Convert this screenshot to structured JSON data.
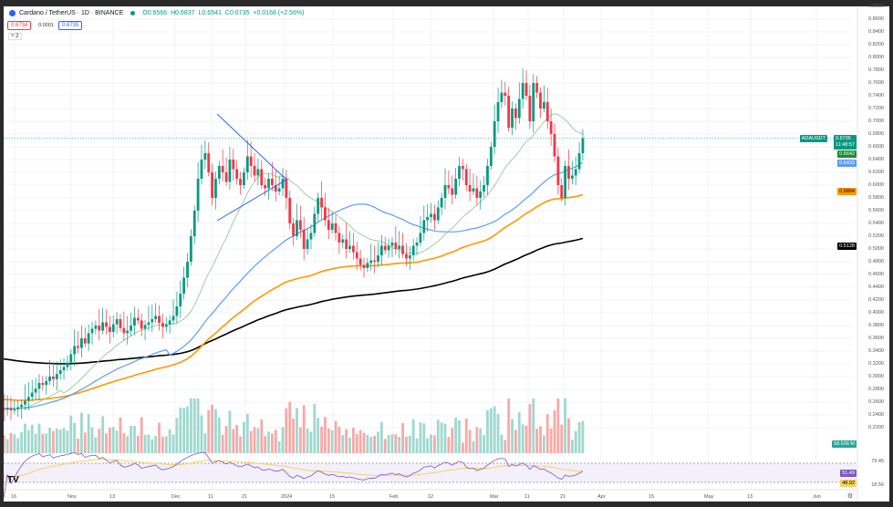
{
  "header": {
    "title": "Cardano / TetherUS · 1D · BINANCE",
    "open": "O0.6566",
    "high": "H0.6837",
    "low": "L0.6541",
    "close": "C0.6735",
    "change": "+0.0168 (+2.56%)",
    "bid": "0.6734",
    "spread": "0.0001",
    "ask": "0.6735",
    "indicators_toggle": "2"
  },
  "price_axis": [
    "0.8800",
    "0.8600",
    "0.8400",
    "0.8200",
    "0.8000",
    "0.7800",
    "0.7600",
    "0.7400",
    "0.7200",
    "0.7000",
    "0.6800",
    "0.6600",
    "0.6400",
    "0.6200",
    "0.6000",
    "0.5800",
    "0.5600",
    "0.5400",
    "0.5200",
    "0.5000",
    "0.4800",
    "0.4600",
    "0.4400",
    "0.4200",
    "0.4000",
    "0.3800",
    "0.3600",
    "0.3400",
    "0.3200",
    "0.3000",
    "0.2800",
    "0.2600",
    "0.2400",
    "0.2200"
  ],
  "tags": {
    "symbol": "ADAUSDT",
    "price": "0.6735",
    "countdown": "11:48:57",
    "ma20": "0.6642",
    "ma50": "0.6433",
    "ma100": "0.5894",
    "ma200": "0.5128",
    "volume": "58.636 M",
    "rsi_top": "79.45",
    "rsi": "51.49",
    "rsi_ma": "48.92",
    "rsi_bottom": "18.56"
  },
  "date_axis": [
    "16",
    "Nov",
    "13",
    "Dec",
    "11",
    "21",
    "2024",
    "15",
    "Feb",
    "12",
    "Mar",
    "11",
    "21",
    "Apr",
    "15",
    "May",
    "13",
    "Jun"
  ],
  "colors": {
    "up": "#089981",
    "down": "#f23645",
    "ma20": "#8bc48a",
    "ma50": "#5b9cf6",
    "ma100": "#ff9800",
    "ma200": "#000000",
    "rsi": "#7e57c2",
    "rsi_ma": "#f7d35b"
  },
  "chart_data": {
    "type": "candlestick",
    "start_date": "2023-10-12",
    "closes": [
      0.252,
      0.25,
      0.248,
      0.251,
      0.247,
      0.249,
      0.252,
      0.256,
      0.262,
      0.268,
      0.275,
      0.281,
      0.29,
      0.287,
      0.293,
      0.3,
      0.296,
      0.304,
      0.31,
      0.315,
      0.322,
      0.335,
      0.348,
      0.345,
      0.36,
      0.352,
      0.368,
      0.375,
      0.38,
      0.372,
      0.385,
      0.378,
      0.37,
      0.382,
      0.39,
      0.376,
      0.368,
      0.372,
      0.38,
      0.392,
      0.388,
      0.375,
      0.381,
      0.385,
      0.39,
      0.395,
      0.384,
      0.378,
      0.382,
      0.388,
      0.395,
      0.41,
      0.43,
      0.455,
      0.48,
      0.52,
      0.56,
      0.61,
      0.64,
      0.65,
      0.62,
      0.58,
      0.61,
      0.63,
      0.62,
      0.605,
      0.64,
      0.625,
      0.61,
      0.6,
      0.62,
      0.645,
      0.63,
      0.615,
      0.625,
      0.6,
      0.595,
      0.61,
      0.6,
      0.59,
      0.595,
      0.61,
      0.58,
      0.54,
      0.52,
      0.545,
      0.53,
      0.5,
      0.515,
      0.525,
      0.555,
      0.58,
      0.565,
      0.545,
      0.53,
      0.54,
      0.525,
      0.51,
      0.515,
      0.5,
      0.505,
      0.495,
      0.485,
      0.475,
      0.47,
      0.478,
      0.482,
      0.48,
      0.49,
      0.505,
      0.498,
      0.505,
      0.51,
      0.5,
      0.505,
      0.492,
      0.485,
      0.49,
      0.505,
      0.51,
      0.525,
      0.545,
      0.55,
      0.555,
      0.545,
      0.565,
      0.58,
      0.6,
      0.595,
      0.585,
      0.61,
      0.63,
      0.625,
      0.6,
      0.59,
      0.595,
      0.58,
      0.59,
      0.6,
      0.63,
      0.66,
      0.7,
      0.73,
      0.745,
      0.74,
      0.69,
      0.72,
      0.705,
      0.735,
      0.76,
      0.74,
      0.7,
      0.76,
      0.745,
      0.72,
      0.73,
      0.7,
      0.68,
      0.645,
      0.6,
      0.58,
      0.63,
      0.61,
      0.615,
      0.625,
      0.65,
      0.6735
    ],
    "ylim": [
      0.18,
      0.89
    ]
  }
}
